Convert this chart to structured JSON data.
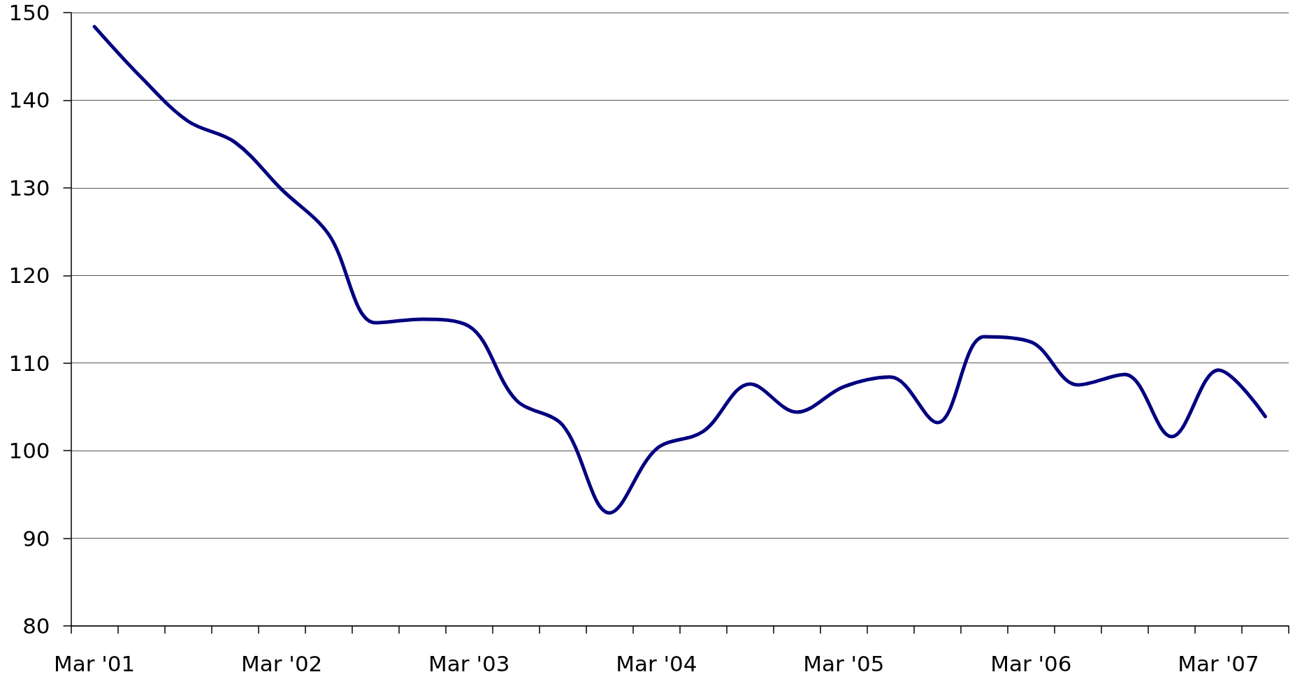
{
  "chart_data": {
    "type": "line",
    "categories": [
      "Mar '01",
      null,
      null,
      null,
      "Mar '02",
      null,
      null,
      null,
      "Mar '03",
      null,
      null,
      null,
      "Mar '04",
      null,
      null,
      null,
      "Mar '05",
      null,
      null,
      null,
      "Mar '06",
      null,
      null,
      null,
      "Mar '07",
      null
    ],
    "series": [
      {
        "color": "#000080",
        "values": [
          148.4,
          142.6,
          137.6,
          135.2,
          129.8,
          124.7,
          114.6,
          115.0,
          114.2,
          105.8,
          102.9,
          92.9,
          100.2,
          102.2,
          107.6,
          104.4,
          107.3,
          108.4,
          103.2,
          113.0,
          112.4,
          107.5,
          108.7,
          101.6,
          109.2,
          103.9
        ]
      }
    ],
    "ylim": [
      80,
      150
    ],
    "yticks": [
      80,
      90,
      100,
      110,
      120,
      130,
      140,
      150
    ],
    "grid": "y",
    "marker": "none",
    "line_style": "solid"
  }
}
